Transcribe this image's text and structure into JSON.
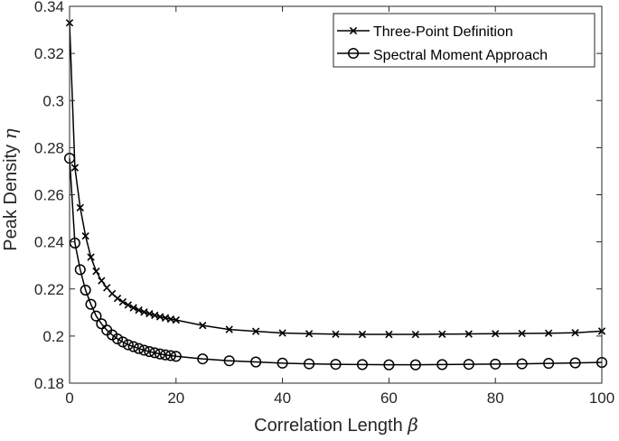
{
  "chart_data": {
    "type": "line",
    "xlabel": "Correlation Length",
    "xlabel_symbol": "β",
    "ylabel": "Peak Density",
    "ylabel_symbol": "η",
    "xlim": [
      0,
      100
    ],
    "ylim": [
      0.18,
      0.34
    ],
    "xticks": [
      "0",
      "20",
      "40",
      "60",
      "80",
      "100"
    ],
    "yticks": [
      "0.18",
      "0.2",
      "0.22",
      "0.24",
      "0.26",
      "0.28",
      "0.3",
      "0.32",
      "0.34"
    ],
    "grid": false,
    "legend_position": "top-right",
    "colors": {
      "line": "#000000",
      "axes": "#262626",
      "background": "#ffffff"
    },
    "series": [
      {
        "name": "Three-Point Definition",
        "marker": "x",
        "x": [
          0,
          1,
          2,
          3,
          4,
          5,
          6,
          7,
          8,
          9,
          10,
          11,
          12,
          13,
          14,
          15,
          16,
          17,
          18,
          19,
          20,
          25,
          30,
          35,
          40,
          45,
          50,
          55,
          60,
          65,
          70,
          75,
          80,
          85,
          90,
          95,
          100
        ],
        "y": [
          0.333,
          0.2715,
          0.2545,
          0.2425,
          0.2335,
          0.2275,
          0.2235,
          0.2205,
          0.218,
          0.216,
          0.2145,
          0.2132,
          0.212,
          0.211,
          0.2102,
          0.2095,
          0.2088,
          0.2082,
          0.2077,
          0.2072,
          0.2068,
          0.2045,
          0.2028,
          0.202,
          0.2013,
          0.201,
          0.2008,
          0.2007,
          0.2007,
          0.2007,
          0.2008,
          0.2009,
          0.201,
          0.2011,
          0.2012,
          0.2014,
          0.2021
        ]
      },
      {
        "name": "Spectral Moment Approach",
        "marker": "o",
        "x": [
          0,
          1,
          2,
          3,
          4,
          5,
          6,
          7,
          8,
          9,
          10,
          11,
          12,
          13,
          14,
          15,
          16,
          17,
          18,
          19,
          20,
          25,
          30,
          35,
          40,
          45,
          50,
          55,
          60,
          65,
          70,
          75,
          80,
          85,
          90,
          95,
          100
        ],
        "y": [
          0.2755,
          0.2395,
          0.2282,
          0.2195,
          0.2135,
          0.2085,
          0.2052,
          0.2025,
          0.2005,
          0.1988,
          0.1975,
          0.1963,
          0.1955,
          0.1947,
          0.194,
          0.1934,
          0.1929,
          0.1924,
          0.192,
          0.1917,
          0.1914,
          0.1903,
          0.1895,
          0.189,
          0.1885,
          0.1882,
          0.188,
          0.1879,
          0.1878,
          0.1878,
          0.1879,
          0.188,
          0.1881,
          0.1882,
          0.1884,
          0.1886,
          0.1888
        ]
      }
    ]
  }
}
